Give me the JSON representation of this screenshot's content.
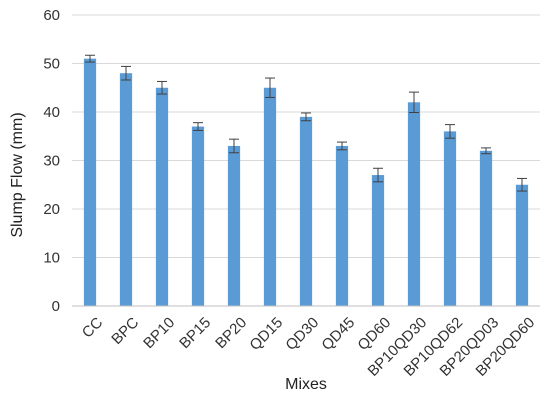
{
  "chart_data": {
    "type": "bar",
    "title": "",
    "xlabel": "Mixes",
    "ylabel": "Slump Flow (mm)",
    "ylim": [
      0,
      60
    ],
    "yticks": [
      0,
      10,
      20,
      30,
      40,
      50,
      60
    ],
    "grid": true,
    "legend": "none",
    "bar_color": "#5B9BD5",
    "error_color": "#404040",
    "categories": [
      "CC",
      "BPC",
      "BP10",
      "BP15",
      "BP20",
      "QD15",
      "QD30",
      "QD45",
      "QD60",
      "BP10QD30",
      "BP10QD62",
      "BP20QD03",
      "BP20QD60"
    ],
    "values": [
      51,
      48,
      45,
      37,
      33,
      45,
      39,
      33,
      27,
      42,
      36,
      32,
      25
    ],
    "errors": [
      0.7,
      1.4,
      1.3,
      0.8,
      1.4,
      2.0,
      0.8,
      0.8,
      1.4,
      2.1,
      1.4,
      0.6,
      1.3
    ]
  }
}
